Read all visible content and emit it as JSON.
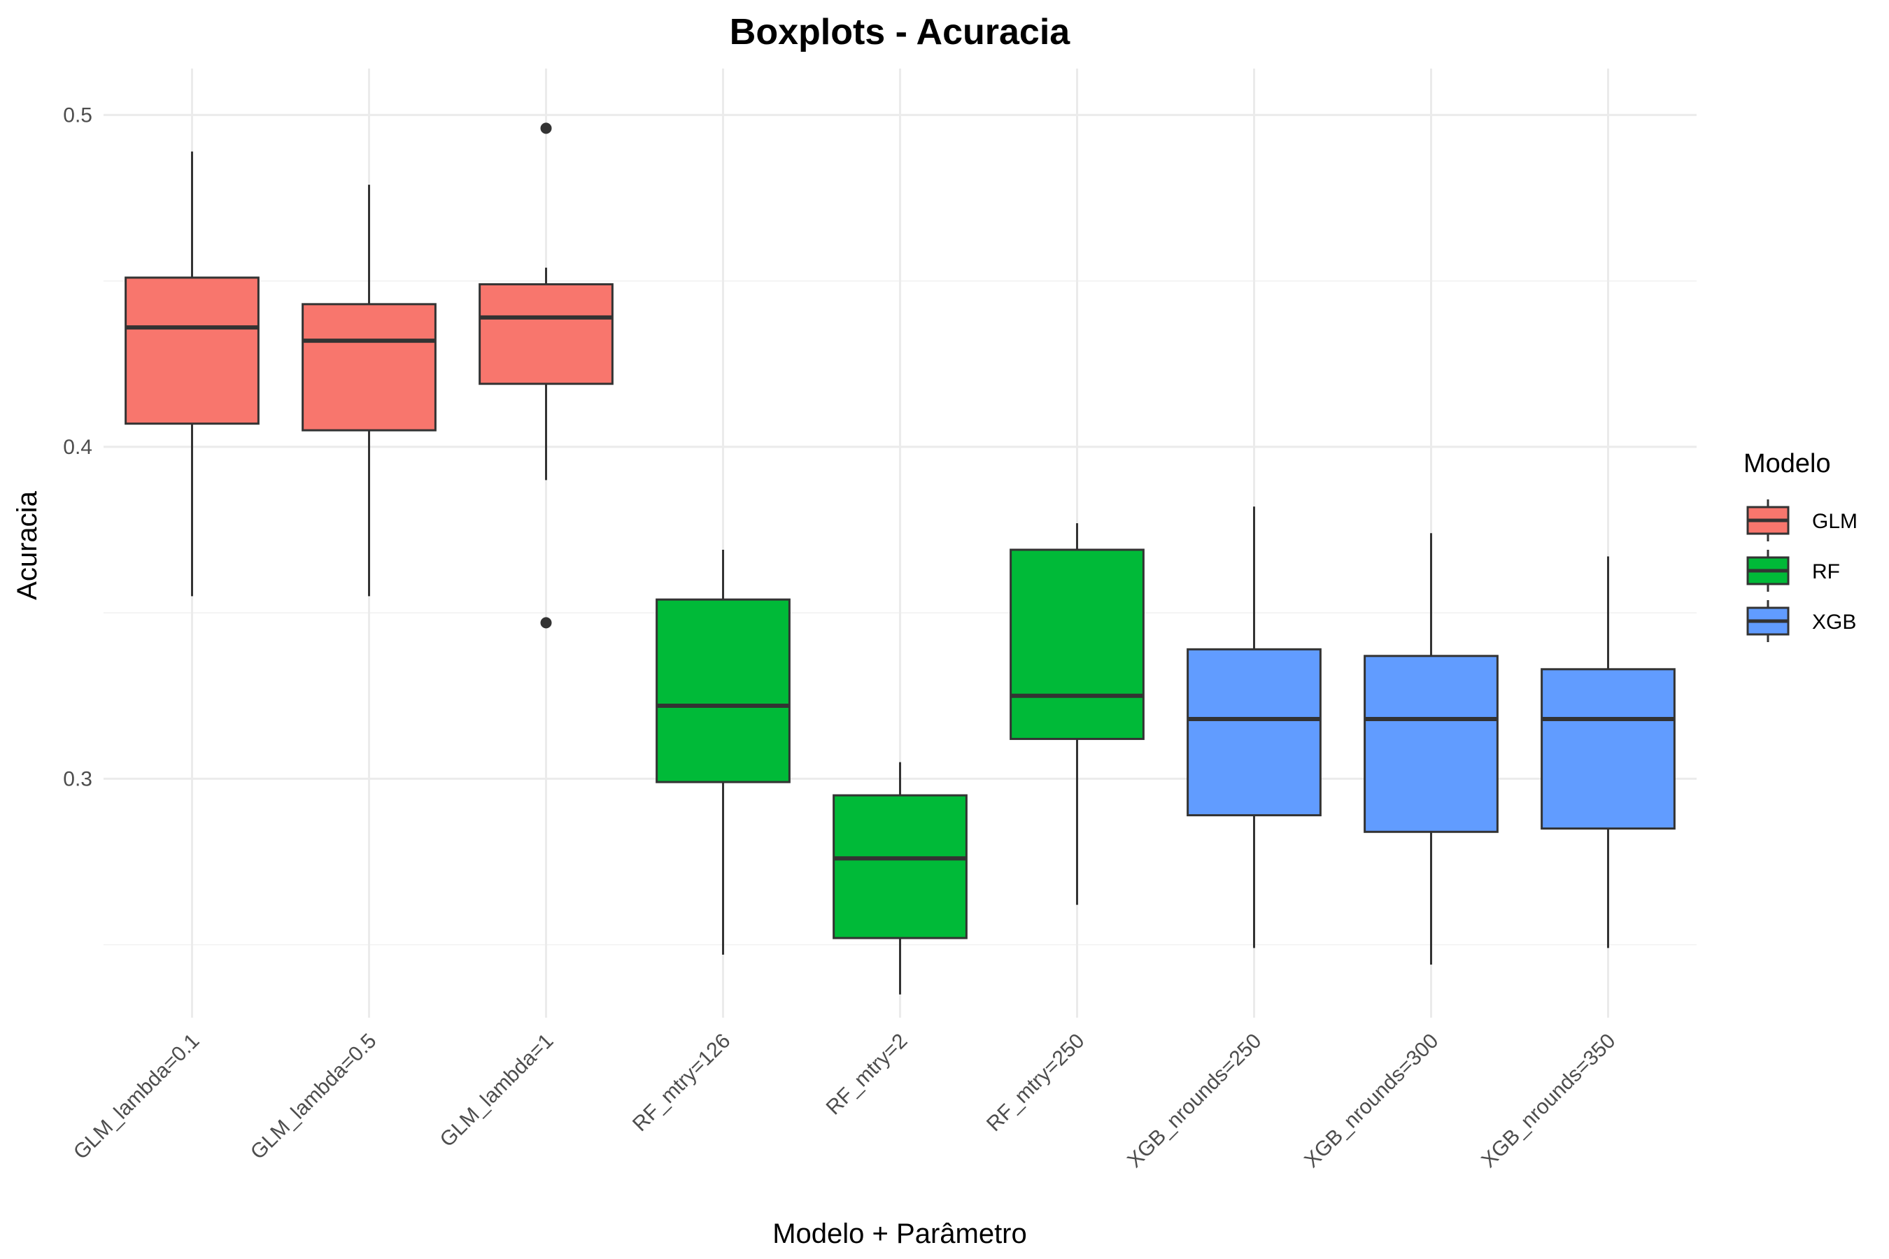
{
  "chart_data": {
    "type": "boxplot",
    "title": "Boxplots - Acuracia",
    "xlabel": "Modelo + Parâmetro",
    "ylabel": "Acuracia",
    "ylim": [
      0.228,
      0.514
    ],
    "y_ticks": [
      0.3,
      0.4,
      0.5
    ],
    "y_tick_labels": [
      "0.3",
      "0.4",
      "0.5"
    ],
    "grid": true,
    "legend": {
      "title": "Modelo",
      "position": "right",
      "entries": [
        {
          "name": "GLM",
          "color": "#F8766D"
        },
        {
          "name": "RF",
          "color": "#00BA38"
        },
        {
          "name": "XGB",
          "color": "#619CFF"
        }
      ]
    },
    "categories": [
      "GLM_lambda=0.1",
      "GLM_lambda=0.5",
      "GLM_lambda=1",
      "RF_mtry=126",
      "RF_mtry=2",
      "RF_mtry=250",
      "XGB_nrounds=250",
      "XGB_nrounds=300",
      "XGB_nrounds=350"
    ],
    "boxes": [
      {
        "category": "GLM_lambda=0.1",
        "group": "GLM",
        "whisker_low": 0.355,
        "q1": 0.407,
        "median": 0.436,
        "q3": 0.451,
        "whisker_high": 0.489,
        "outliers": []
      },
      {
        "category": "GLM_lambda=0.5",
        "group": "GLM",
        "whisker_low": 0.355,
        "q1": 0.405,
        "median": 0.432,
        "q3": 0.443,
        "whisker_high": 0.479,
        "outliers": []
      },
      {
        "category": "GLM_lambda=1",
        "group": "GLM",
        "whisker_low": 0.39,
        "q1": 0.419,
        "median": 0.439,
        "q3": 0.449,
        "whisker_high": 0.454,
        "outliers": [
          0.496,
          0.347
        ]
      },
      {
        "category": "RF_mtry=126",
        "group": "RF",
        "whisker_low": 0.247,
        "q1": 0.299,
        "median": 0.322,
        "q3": 0.354,
        "whisker_high": 0.369,
        "outliers": []
      },
      {
        "category": "RF_mtry=2",
        "group": "RF",
        "whisker_low": 0.235,
        "q1": 0.252,
        "median": 0.276,
        "q3": 0.295,
        "whisker_high": 0.305,
        "outliers": []
      },
      {
        "category": "RF_mtry=250",
        "group": "RF",
        "whisker_low": 0.262,
        "q1": 0.312,
        "median": 0.325,
        "q3": 0.369,
        "whisker_high": 0.377,
        "outliers": []
      },
      {
        "category": "XGB_nrounds=250",
        "group": "XGB",
        "whisker_low": 0.249,
        "q1": 0.289,
        "median": 0.318,
        "q3": 0.339,
        "whisker_high": 0.382,
        "outliers": []
      },
      {
        "category": "XGB_nrounds=300",
        "group": "XGB",
        "whisker_low": 0.244,
        "q1": 0.284,
        "median": 0.318,
        "q3": 0.337,
        "whisker_high": 0.374,
        "outliers": []
      },
      {
        "category": "XGB_nrounds=350",
        "group": "XGB",
        "whisker_low": 0.249,
        "q1": 0.285,
        "median": 0.318,
        "q3": 0.333,
        "whisker_high": 0.367,
        "outliers": []
      }
    ]
  }
}
